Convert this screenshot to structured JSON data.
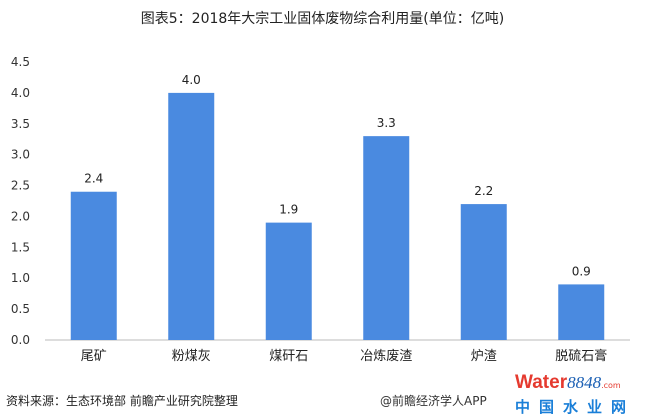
{
  "chart_data": {
    "type": "bar",
    "title": "图表5：2018年大宗工业固体废物综合利用量(单位：亿吨)",
    "categories": [
      "尾矿",
      "粉煤灰",
      "煤矸石",
      "冶炼废渣",
      "炉渣",
      "脱硫石膏"
    ],
    "values": [
      2.4,
      4.0,
      1.9,
      3.3,
      2.2,
      0.9
    ],
    "data_labels": [
      "2.4",
      "4.0",
      "1.9",
      "3.3",
      "2.2",
      "0.9"
    ],
    "ylim": [
      0,
      4.5
    ],
    "yticks": [
      "0.0",
      "0.5",
      "1.0",
      "1.5",
      "2.0",
      "2.5",
      "3.0",
      "3.5",
      "4.0",
      "4.5"
    ],
    "grid": false,
    "bar_color": "#4a8ae0"
  },
  "source": "资料来源：生态环境部 前瞻产业研究院整理",
  "logo": {
    "brand": "Water",
    "number": "8848",
    "suffix": ".com",
    "cn": "中国水业网",
    "app": "@前瞻经济学人APP"
  }
}
